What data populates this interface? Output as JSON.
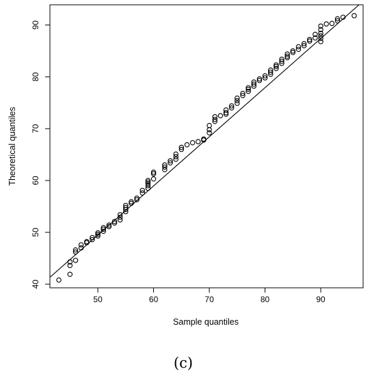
{
  "chart_data": {
    "type": "scatter",
    "title": "",
    "xlabel": "Sample quantiles",
    "ylabel": "Theoretical quantiles",
    "xlim": [
      41.4,
      97.6
    ],
    "ylim": [
      39.3,
      93.9
    ],
    "xticks": [
      50,
      60,
      70,
      80,
      90
    ],
    "yticks": [
      40,
      50,
      60,
      70,
      80,
      90
    ],
    "grid": false,
    "panel_label": "(c)",
    "reference_line": {
      "x": [
        40.0,
        97.5
      ],
      "y": [
        40.0,
        94.5
      ]
    },
    "series": [
      {
        "x": [
          43,
          45,
          45,
          45,
          46,
          46,
          46,
          47,
          47,
          48,
          48,
          49,
          49,
          50,
          50,
          50,
          51,
          51,
          51,
          52,
          52,
          53,
          53,
          54,
          54,
          54,
          55,
          55,
          55,
          55,
          56,
          56,
          57,
          57,
          58,
          58,
          59,
          59,
          59,
          59,
          59,
          60,
          60,
          60,
          62,
          62,
          62,
          63,
          63,
          64,
          64,
          64,
          65,
          65,
          66,
          67,
          68,
          69,
          69,
          70,
          70,
          70,
          71,
          71,
          71,
          72,
          73,
          73,
          73,
          74,
          74,
          75,
          75,
          75,
          76,
          76,
          77,
          77,
          77,
          78,
          78,
          78,
          79,
          79,
          80,
          80,
          81,
          81,
          81,
          82,
          82,
          82,
          83,
          83,
          83,
          84,
          84,
          84,
          85,
          85,
          86,
          86,
          87,
          87,
          88,
          88,
          89,
          89,
          90,
          90,
          90,
          90,
          90,
          90,
          91,
          92,
          93,
          93,
          94,
          96
        ],
        "y": [
          40.8,
          41.9,
          43.6,
          44.3,
          44.6,
          46.2,
          46.6,
          47.0,
          47.6,
          48.0,
          48.2,
          48.6,
          49.0,
          49.3,
          49.6,
          49.9,
          50.2,
          50.6,
          50.9,
          51.1,
          51.4,
          51.8,
          52.1,
          52.4,
          52.9,
          53.4,
          54.0,
          54.4,
          54.8,
          55.2,
          55.6,
          55.9,
          56.3,
          56.6,
          57.6,
          58.1,
          58.5,
          59.0,
          59.4,
          59.7,
          60.0,
          60.3,
          61.3,
          61.6,
          62.1,
          62.6,
          63.0,
          63.4,
          63.8,
          64.1,
          64.6,
          65.1,
          66.0,
          66.4,
          66.9,
          67.3,
          67.5,
          67.8,
          68.0,
          69.2,
          69.8,
          70.6,
          71.4,
          71.8,
          72.3,
          72.5,
          72.8,
          73.1,
          73.6,
          74.0,
          74.4,
          74.9,
          75.4,
          75.9,
          76.4,
          76.8,
          77.2,
          77.6,
          77.9,
          78.2,
          78.6,
          79.0,
          79.3,
          79.6,
          79.8,
          80.2,
          80.5,
          80.9,
          81.3,
          81.6,
          82.0,
          82.3,
          82.6,
          83.0,
          83.4,
          83.7,
          84.0,
          84.4,
          84.7,
          85.0,
          85.3,
          85.8,
          86.0,
          86.4,
          86.9,
          87.2,
          87.5,
          88.2,
          86.8,
          87.4,
          87.9,
          88.4,
          89.1,
          89.8,
          90.2,
          90.3,
          90.8,
          91.2,
          91.5,
          91.8
        ]
      }
    ]
  }
}
